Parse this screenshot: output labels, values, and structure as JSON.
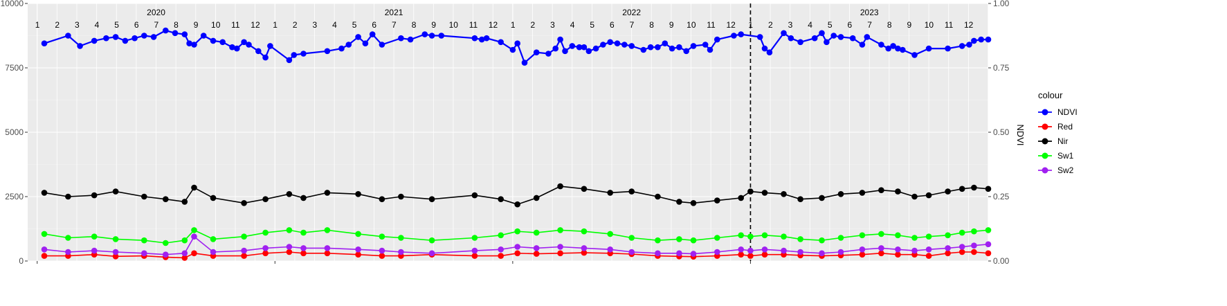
{
  "chart_data": {
    "type": "line",
    "left_axis": {
      "ylim": [
        0,
        10000
      ],
      "ticks": [
        0,
        2500,
        5000,
        7500,
        10000
      ],
      "tick_labels": [
        "0",
        "2500",
        "5000",
        "7500",
        "10000"
      ]
    },
    "right_axis": {
      "title": "NDVI",
      "ylim": [
        0,
        1
      ],
      "ticks": [
        0,
        0.25,
        0.5,
        0.75,
        1.0
      ],
      "tick_labels": [
        "0.00",
        "0.25",
        "0.50",
        "0.75",
        "1.00"
      ]
    },
    "x_range": [
      2019.96,
      2024.0
    ],
    "year_labels": [
      {
        "label": "2020",
        "x": 2020.5
      },
      {
        "label": "2021",
        "x": 2021.5
      },
      {
        "label": "2022",
        "x": 2022.5
      },
      {
        "label": "2023",
        "x": 2023.5
      }
    ],
    "month_labels": [
      "1",
      "2",
      "3",
      "4",
      "5",
      "6",
      "7",
      "8",
      "9",
      "10",
      "11",
      "12"
    ],
    "vertical_marker_x": 2023.0,
    "grid": true,
    "legend": {
      "title": "colour",
      "position": "right"
    },
    "series": [
      {
        "name": "NDVI",
        "axis": "right",
        "color": "#0000FF",
        "points": [
          [
            2020.03,
            0.845
          ],
          [
            2020.13,
            0.875
          ],
          [
            2020.18,
            0.835
          ],
          [
            2020.24,
            0.855
          ],
          [
            2020.29,
            0.865
          ],
          [
            2020.33,
            0.87
          ],
          [
            2020.37,
            0.855
          ],
          [
            2020.41,
            0.865
          ],
          [
            2020.45,
            0.875
          ],
          [
            2020.49,
            0.87
          ],
          [
            2020.54,
            0.895
          ],
          [
            2020.58,
            0.885
          ],
          [
            2020.62,
            0.88
          ],
          [
            2020.64,
            0.845
          ],
          [
            2020.66,
            0.84
          ],
          [
            2020.7,
            0.875
          ],
          [
            2020.74,
            0.855
          ],
          [
            2020.78,
            0.85
          ],
          [
            2020.82,
            0.83
          ],
          [
            2020.84,
            0.825
          ],
          [
            2020.87,
            0.85
          ],
          [
            2020.89,
            0.84
          ],
          [
            2020.93,
            0.815
          ],
          [
            2020.96,
            0.79
          ],
          [
            2020.98,
            0.835
          ],
          [
            2021.06,
            0.78
          ],
          [
            2021.08,
            0.8
          ],
          [
            2021.12,
            0.805
          ],
          [
            2021.22,
            0.815
          ],
          [
            2021.28,
            0.825
          ],
          [
            2021.31,
            0.84
          ],
          [
            2021.35,
            0.87
          ],
          [
            2021.38,
            0.845
          ],
          [
            2021.41,
            0.88
          ],
          [
            2021.45,
            0.84
          ],
          [
            2021.53,
            0.865
          ],
          [
            2021.57,
            0.86
          ],
          [
            2021.63,
            0.88
          ],
          [
            2021.66,
            0.875
          ],
          [
            2021.7,
            0.875
          ],
          [
            2021.84,
            0.865
          ],
          [
            2021.87,
            0.86
          ],
          [
            2021.89,
            0.865
          ],
          [
            2021.95,
            0.85
          ],
          [
            2022.0,
            0.82
          ],
          [
            2022.02,
            0.845
          ],
          [
            2022.05,
            0.77
          ],
          [
            2022.1,
            0.81
          ],
          [
            2022.15,
            0.805
          ],
          [
            2022.18,
            0.825
          ],
          [
            2022.2,
            0.86
          ],
          [
            2022.22,
            0.815
          ],
          [
            2022.25,
            0.835
          ],
          [
            2022.28,
            0.83
          ],
          [
            2022.3,
            0.83
          ],
          [
            2022.32,
            0.815
          ],
          [
            2022.35,
            0.825
          ],
          [
            2022.38,
            0.84
          ],
          [
            2022.41,
            0.85
          ],
          [
            2022.44,
            0.845
          ],
          [
            2022.47,
            0.84
          ],
          [
            2022.5,
            0.835
          ],
          [
            2022.55,
            0.82
          ],
          [
            2022.58,
            0.83
          ],
          [
            2022.61,
            0.83
          ],
          [
            2022.64,
            0.845
          ],
          [
            2022.67,
            0.825
          ],
          [
            2022.7,
            0.83
          ],
          [
            2022.73,
            0.815
          ],
          [
            2022.76,
            0.835
          ],
          [
            2022.81,
            0.84
          ],
          [
            2022.83,
            0.82
          ],
          [
            2022.86,
            0.86
          ],
          [
            2022.93,
            0.875
          ],
          [
            2022.96,
            0.88
          ],
          [
            2023.04,
            0.87
          ],
          [
            2023.06,
            0.825
          ],
          [
            2023.08,
            0.81
          ],
          [
            2023.14,
            0.885
          ],
          [
            2023.17,
            0.865
          ],
          [
            2023.21,
            0.85
          ],
          [
            2023.27,
            0.865
          ],
          [
            2023.3,
            0.885
          ],
          [
            2023.32,
            0.85
          ],
          [
            2023.35,
            0.875
          ],
          [
            2023.38,
            0.87
          ],
          [
            2023.43,
            0.865
          ],
          [
            2023.47,
            0.84
          ],
          [
            2023.49,
            0.87
          ],
          [
            2023.55,
            0.84
          ],
          [
            2023.58,
            0.825
          ],
          [
            2023.6,
            0.835
          ],
          [
            2023.62,
            0.825
          ],
          [
            2023.64,
            0.82
          ],
          [
            2023.69,
            0.8
          ],
          [
            2023.75,
            0.825
          ],
          [
            2023.83,
            0.825
          ],
          [
            2023.89,
            0.835
          ],
          [
            2023.92,
            0.84
          ],
          [
            2023.94,
            0.855
          ],
          [
            2023.97,
            0.86
          ],
          [
            2024.0,
            0.86
          ]
        ]
      },
      {
        "name": "Red",
        "axis": "left",
        "color": "#FF0000",
        "points": [
          [
            2020.03,
            200
          ],
          [
            2020.13,
            200
          ],
          [
            2020.24,
            250
          ],
          [
            2020.33,
            180
          ],
          [
            2020.45,
            200
          ],
          [
            2020.54,
            150
          ],
          [
            2020.62,
            120
          ],
          [
            2020.66,
            300
          ],
          [
            2020.74,
            200
          ],
          [
            2020.87,
            200
          ],
          [
            2020.96,
            300
          ],
          [
            2021.06,
            350
          ],
          [
            2021.12,
            300
          ],
          [
            2021.22,
            300
          ],
          [
            2021.35,
            250
          ],
          [
            2021.45,
            200
          ],
          [
            2021.53,
            200
          ],
          [
            2021.66,
            250
          ],
          [
            2021.84,
            200
          ],
          [
            2021.95,
            200
          ],
          [
            2022.02,
            300
          ],
          [
            2022.1,
            280
          ],
          [
            2022.2,
            300
          ],
          [
            2022.3,
            320
          ],
          [
            2022.41,
            300
          ],
          [
            2022.5,
            270
          ],
          [
            2022.61,
            200
          ],
          [
            2022.7,
            180
          ],
          [
            2022.76,
            170
          ],
          [
            2022.86,
            200
          ],
          [
            2022.96,
            250
          ],
          [
            2023.0,
            200
          ],
          [
            2023.06,
            250
          ],
          [
            2023.14,
            250
          ],
          [
            2023.21,
            220
          ],
          [
            2023.3,
            200
          ],
          [
            2023.38,
            220
          ],
          [
            2023.47,
            250
          ],
          [
            2023.55,
            300
          ],
          [
            2023.62,
            250
          ],
          [
            2023.69,
            250
          ],
          [
            2023.75,
            200
          ],
          [
            2023.83,
            300
          ],
          [
            2023.89,
            350
          ],
          [
            2023.94,
            350
          ],
          [
            2024.0,
            300
          ]
        ]
      },
      {
        "name": "Nir",
        "axis": "left",
        "color": "#000000",
        "points": [
          [
            2020.03,
            2650
          ],
          [
            2020.13,
            2500
          ],
          [
            2020.24,
            2550
          ],
          [
            2020.33,
            2700
          ],
          [
            2020.45,
            2500
          ],
          [
            2020.54,
            2400
          ],
          [
            2020.62,
            2300
          ],
          [
            2020.66,
            2850
          ],
          [
            2020.74,
            2450
          ],
          [
            2020.87,
            2250
          ],
          [
            2020.96,
            2400
          ],
          [
            2021.06,
            2600
          ],
          [
            2021.12,
            2450
          ],
          [
            2021.22,
            2650
          ],
          [
            2021.35,
            2600
          ],
          [
            2021.45,
            2400
          ],
          [
            2021.53,
            2500
          ],
          [
            2021.66,
            2400
          ],
          [
            2021.84,
            2550
          ],
          [
            2021.95,
            2400
          ],
          [
            2022.02,
            2200
          ],
          [
            2022.1,
            2450
          ],
          [
            2022.2,
            2900
          ],
          [
            2022.3,
            2800
          ],
          [
            2022.41,
            2650
          ],
          [
            2022.5,
            2700
          ],
          [
            2022.61,
            2500
          ],
          [
            2022.7,
            2300
          ],
          [
            2022.76,
            2250
          ],
          [
            2022.86,
            2350
          ],
          [
            2022.96,
            2450
          ],
          [
            2023.0,
            2700
          ],
          [
            2023.06,
            2650
          ],
          [
            2023.14,
            2600
          ],
          [
            2023.21,
            2400
          ],
          [
            2023.3,
            2450
          ],
          [
            2023.38,
            2600
          ],
          [
            2023.47,
            2650
          ],
          [
            2023.55,
            2750
          ],
          [
            2023.62,
            2700
          ],
          [
            2023.69,
            2500
          ],
          [
            2023.75,
            2550
          ],
          [
            2023.83,
            2700
          ],
          [
            2023.89,
            2800
          ],
          [
            2023.94,
            2850
          ],
          [
            2024.0,
            2800
          ]
        ]
      },
      {
        "name": "Sw1",
        "axis": "left",
        "color": "#00FF00",
        "points": [
          [
            2020.03,
            1050
          ],
          [
            2020.13,
            900
          ],
          [
            2020.24,
            950
          ],
          [
            2020.33,
            850
          ],
          [
            2020.45,
            800
          ],
          [
            2020.54,
            700
          ],
          [
            2020.62,
            800
          ],
          [
            2020.66,
            1200
          ],
          [
            2020.74,
            850
          ],
          [
            2020.87,
            950
          ],
          [
            2020.96,
            1100
          ],
          [
            2021.06,
            1200
          ],
          [
            2021.12,
            1100
          ],
          [
            2021.22,
            1200
          ],
          [
            2021.35,
            1050
          ],
          [
            2021.45,
            950
          ],
          [
            2021.53,
            900
          ],
          [
            2021.66,
            800
          ],
          [
            2021.84,
            900
          ],
          [
            2021.95,
            1000
          ],
          [
            2022.02,
            1150
          ],
          [
            2022.1,
            1100
          ],
          [
            2022.2,
            1200
          ],
          [
            2022.3,
            1150
          ],
          [
            2022.41,
            1050
          ],
          [
            2022.5,
            900
          ],
          [
            2022.61,
            800
          ],
          [
            2022.7,
            850
          ],
          [
            2022.76,
            800
          ],
          [
            2022.86,
            900
          ],
          [
            2022.96,
            1000
          ],
          [
            2023.0,
            950
          ],
          [
            2023.06,
            1000
          ],
          [
            2023.14,
            950
          ],
          [
            2023.21,
            850
          ],
          [
            2023.3,
            800
          ],
          [
            2023.38,
            900
          ],
          [
            2023.47,
            1000
          ],
          [
            2023.55,
            1050
          ],
          [
            2023.62,
            1000
          ],
          [
            2023.69,
            900
          ],
          [
            2023.75,
            950
          ],
          [
            2023.83,
            1000
          ],
          [
            2023.89,
            1100
          ],
          [
            2023.94,
            1150
          ],
          [
            2024.0,
            1200
          ]
        ]
      },
      {
        "name": "Sw2",
        "axis": "left",
        "color": "#A020F0",
        "points": [
          [
            2020.03,
            450
          ],
          [
            2020.13,
            350
          ],
          [
            2020.24,
            400
          ],
          [
            2020.33,
            350
          ],
          [
            2020.45,
            300
          ],
          [
            2020.54,
            250
          ],
          [
            2020.62,
            300
          ],
          [
            2020.66,
            950
          ],
          [
            2020.74,
            350
          ],
          [
            2020.87,
            400
          ],
          [
            2020.96,
            500
          ],
          [
            2021.06,
            550
          ],
          [
            2021.12,
            500
          ],
          [
            2021.22,
            500
          ],
          [
            2021.35,
            450
          ],
          [
            2021.45,
            400
          ],
          [
            2021.53,
            350
          ],
          [
            2021.66,
            300
          ],
          [
            2021.84,
            400
          ],
          [
            2021.95,
            450
          ],
          [
            2022.02,
            550
          ],
          [
            2022.1,
            500
          ],
          [
            2022.2,
            550
          ],
          [
            2022.3,
            500
          ],
          [
            2022.41,
            450
          ],
          [
            2022.5,
            350
          ],
          [
            2022.61,
            300
          ],
          [
            2022.7,
            300
          ],
          [
            2022.76,
            280
          ],
          [
            2022.86,
            350
          ],
          [
            2022.96,
            450
          ],
          [
            2023.0,
            400
          ],
          [
            2023.06,
            450
          ],
          [
            2023.14,
            400
          ],
          [
            2023.21,
            350
          ],
          [
            2023.3,
            300
          ],
          [
            2023.38,
            350
          ],
          [
            2023.47,
            450
          ],
          [
            2023.55,
            500
          ],
          [
            2023.62,
            450
          ],
          [
            2023.69,
            400
          ],
          [
            2023.75,
            450
          ],
          [
            2023.83,
            500
          ],
          [
            2023.89,
            550
          ],
          [
            2023.94,
            600
          ],
          [
            2024.0,
            650
          ]
        ]
      }
    ]
  }
}
